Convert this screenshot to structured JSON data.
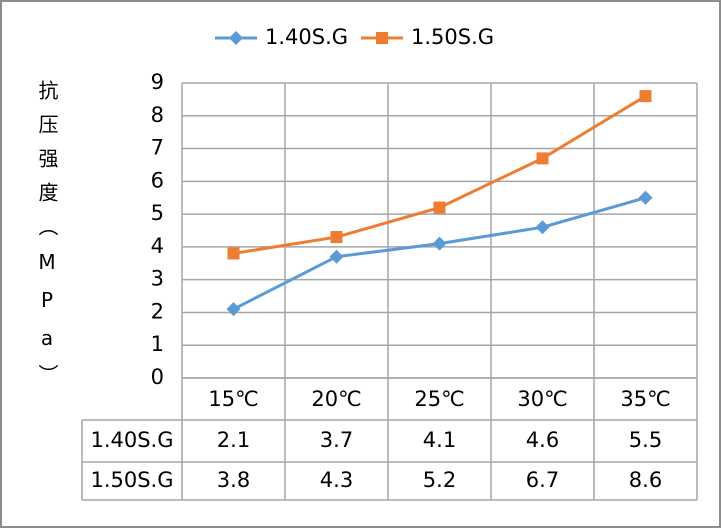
{
  "chart_data": {
    "type": "line",
    "y_label": "抗压强度（MPa）",
    "categories": [
      "15℃",
      "20℃",
      "25℃",
      "30℃",
      "35℃"
    ],
    "series": [
      {
        "name": "1.40S.G",
        "color": "#5b9bd5",
        "marker": "diamond",
        "values": [
          2.1,
          3.7,
          4.1,
          4.6,
          5.5
        ]
      },
      {
        "name": "1.50S.G",
        "color": "#ed7d31",
        "marker": "square",
        "values": [
          3.8,
          4.3,
          5.2,
          6.7,
          8.6
        ]
      }
    ],
    "ylim": [
      0,
      9
    ],
    "yticks": [
      0,
      1,
      2,
      3,
      4,
      5,
      6,
      7,
      8,
      9
    ],
    "grid": true,
    "legend": "top",
    "data_table": true
  }
}
